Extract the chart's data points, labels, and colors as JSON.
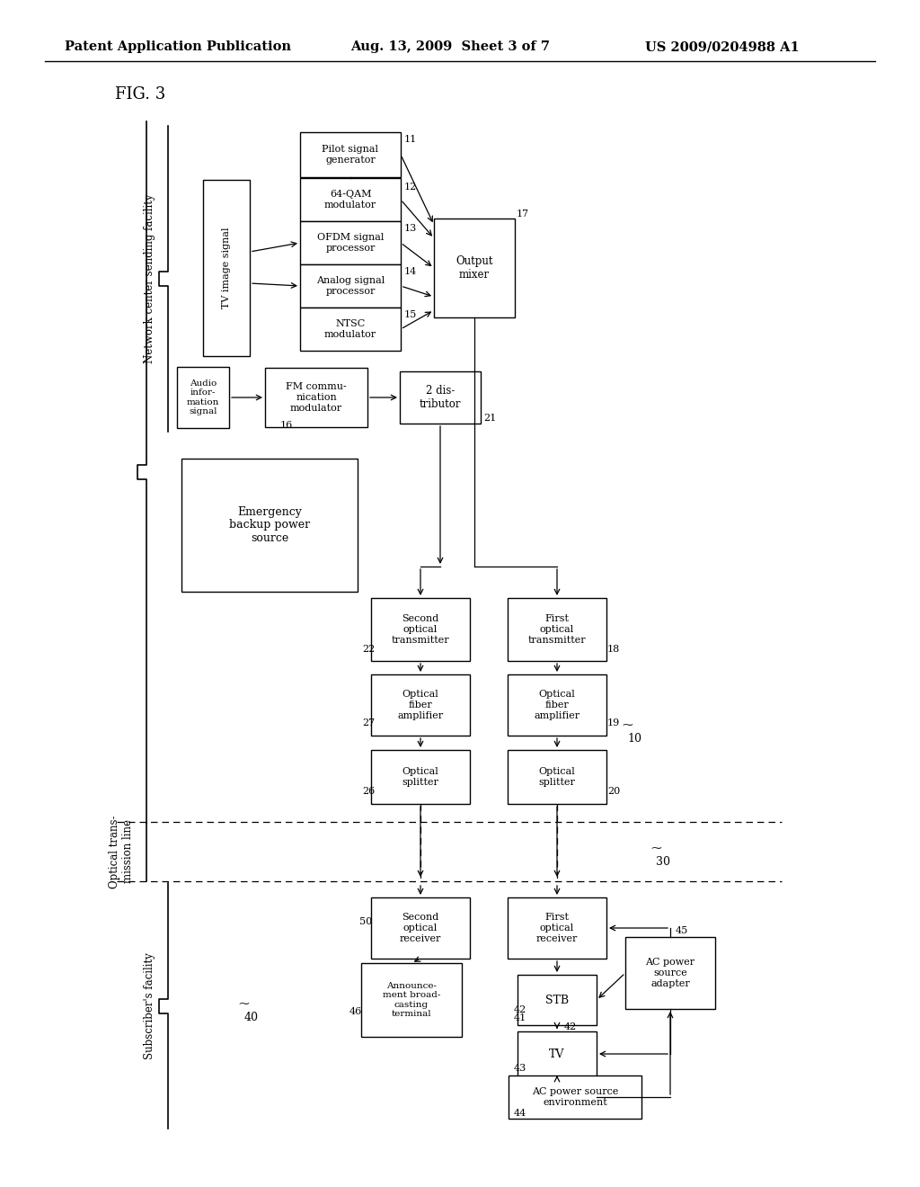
{
  "bg_color": "#ffffff",
  "header_left": "Patent Application Publication",
  "header_mid": "Aug. 13, 2009  Sheet 3 of 7",
  "header_right": "US 2009/0204988 A1",
  "fig_label": "FIG. 3"
}
